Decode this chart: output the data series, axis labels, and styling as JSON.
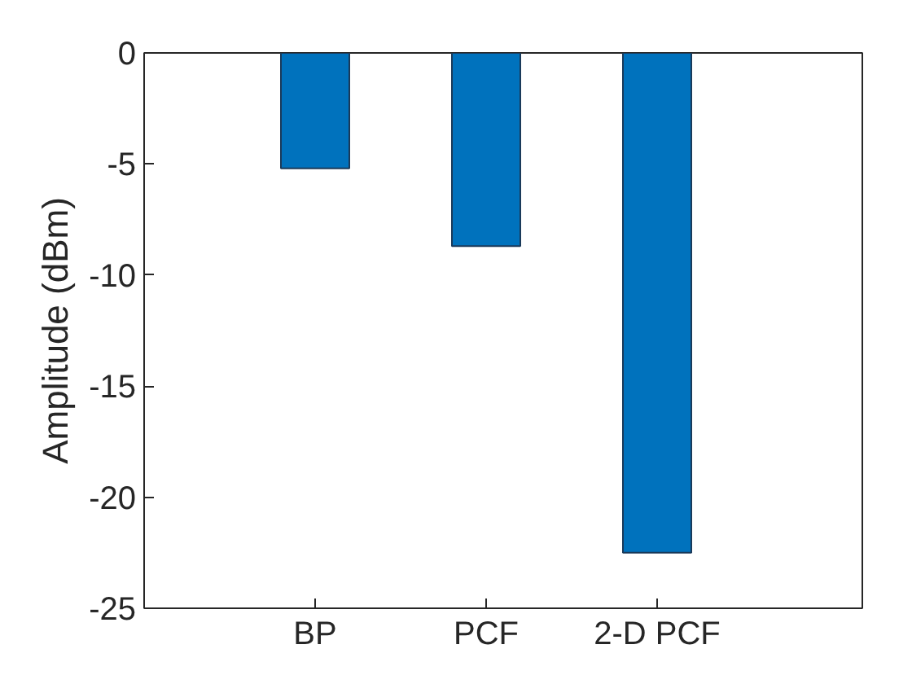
{
  "chart_data": {
    "type": "bar",
    "ylabel": "Amplitude (dBm)",
    "categories": [
      "BP",
      "PCF",
      "2-D PCF"
    ],
    "values": [
      -5.2,
      -8.7,
      -22.5
    ],
    "color": "#0072bd",
    "ylim": [
      -25,
      0
    ],
    "yticks": [
      -25,
      -20,
      -15,
      -10,
      -5,
      0
    ],
    "grid": false
  }
}
